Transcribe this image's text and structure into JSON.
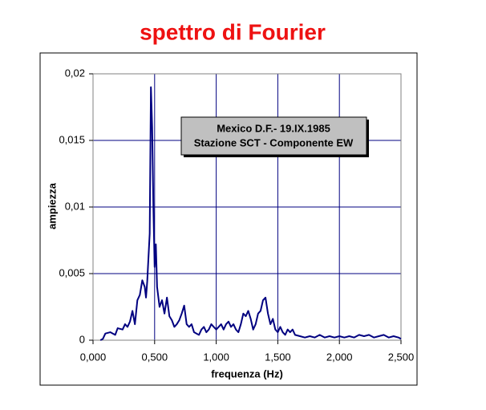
{
  "chart_data": {
    "type": "line",
    "title": "spettro di Fourier",
    "xlabel": "frequenza (Hz)",
    "ylabel": "ampiezza",
    "annotation": [
      "Mexico D.F.- 19.IX.1985",
      "Stazione SCT - Componente EW"
    ],
    "color": "#000080",
    "grid": true,
    "xlim": [
      0,
      2.5
    ],
    "ylim": [
      0,
      0.02
    ],
    "xticks": [
      {
        "value": 0,
        "label": "0,000"
      },
      {
        "value": 0.5,
        "label": "0,500"
      },
      {
        "value": 1,
        "label": "1,000"
      },
      {
        "value": 1.5,
        "label": "1,500"
      },
      {
        "value": 2,
        "label": "2,000"
      },
      {
        "value": 2.5,
        "label": "2,500"
      }
    ],
    "yticks": [
      0,
      {
        "value": 0.005,
        "label": "0,005"
      },
      {
        "value": 0.01,
        "label": "0,01"
      },
      {
        "value": 0.015,
        "label": "0,015"
      },
      {
        "value": 0.02,
        "label": "0,02"
      }
    ],
    "x": [
      0.06,
      0.08,
      0.1,
      0.14,
      0.18,
      0.2,
      0.24,
      0.26,
      0.28,
      0.3,
      0.32,
      0.34,
      0.36,
      0.38,
      0.4,
      0.42,
      0.43,
      0.44,
      0.46,
      0.47,
      0.48,
      0.49,
      0.5,
      0.51,
      0.52,
      0.54,
      0.56,
      0.58,
      0.6,
      0.62,
      0.64,
      0.66,
      0.68,
      0.7,
      0.72,
      0.74,
      0.76,
      0.78,
      0.8,
      0.82,
      0.84,
      0.86,
      0.88,
      0.9,
      0.92,
      0.94,
      0.96,
      0.98,
      1.0,
      1.02,
      1.04,
      1.06,
      1.08,
      1.1,
      1.12,
      1.14,
      1.16,
      1.18,
      1.2,
      1.22,
      1.24,
      1.26,
      1.28,
      1.3,
      1.32,
      1.34,
      1.36,
      1.38,
      1.4,
      1.42,
      1.44,
      1.46,
      1.48,
      1.5,
      1.52,
      1.54,
      1.56,
      1.58,
      1.6,
      1.62,
      1.64,
      1.68,
      1.72,
      1.76,
      1.8,
      1.84,
      1.88,
      1.92,
      1.96,
      2.0,
      2.04,
      2.08,
      2.12,
      2.16,
      2.2,
      2.24,
      2.28,
      2.32,
      2.36,
      2.4,
      2.44,
      2.48,
      2.5
    ],
    "values": [
      0,
      0.0001,
      0.0005,
      0.0006,
      0.0004,
      0.0009,
      0.0008,
      0.0012,
      0.001,
      0.0014,
      0.0022,
      0.0012,
      0.003,
      0.0034,
      0.0045,
      0.004,
      0.0032,
      0.0044,
      0.008,
      0.019,
      0.016,
      0.01,
      0.0055,
      0.0072,
      0.004,
      0.0025,
      0.003,
      0.002,
      0.0032,
      0.0018,
      0.0015,
      0.001,
      0.0012,
      0.0015,
      0.002,
      0.0026,
      0.0012,
      0.001,
      0.0012,
      0.0006,
      0.0005,
      0.0004,
      0.0008,
      0.001,
      0.0006,
      0.0008,
      0.0012,
      0.001,
      0.0008,
      0.001,
      0.0012,
      0.0008,
      0.0012,
      0.0014,
      0.001,
      0.0012,
      0.0008,
      0.0006,
      0.0012,
      0.002,
      0.0018,
      0.0022,
      0.0016,
      0.0008,
      0.0012,
      0.002,
      0.0022,
      0.003,
      0.0032,
      0.002,
      0.0012,
      0.0016,
      0.0008,
      0.0006,
      0.001,
      0.0006,
      0.0004,
      0.0008,
      0.0006,
      0.0008,
      0.0004,
      0.0003,
      0.0002,
      0.0003,
      0.0002,
      0.0004,
      0.0002,
      0.0003,
      0.0002,
      0.0003,
      0.0002,
      0.0003,
      0.0002,
      0.0004,
      0.0003,
      0.0004,
      0.0002,
      0.0003,
      0.0004,
      0.0002,
      0.0003,
      0.0002,
      0.0001
    ]
  }
}
